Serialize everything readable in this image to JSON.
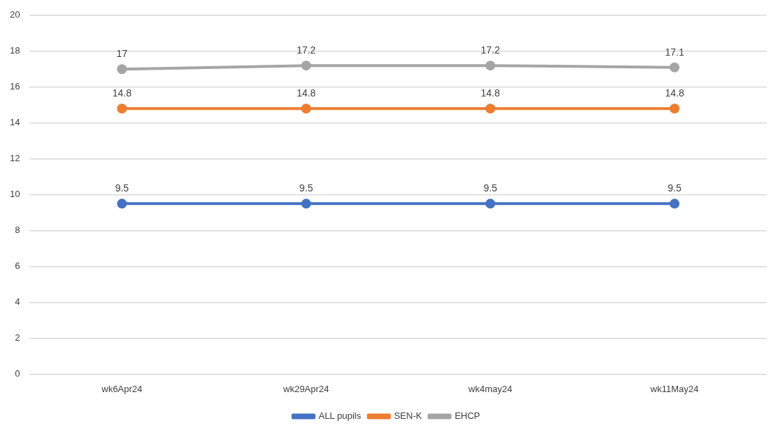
{
  "chart_data": {
    "type": "line",
    "categories": [
      "wk6Apr24",
      "wk29Apr24",
      "wk4may24",
      "wk11May24"
    ],
    "series": [
      {
        "name": "ALL pupils",
        "color": "#4472c4",
        "values": [
          9.5,
          9.5,
          9.5,
          9.5
        ]
      },
      {
        "name": "SEN-K",
        "color": "#ed7d31",
        "values": [
          14.8,
          14.8,
          14.8,
          14.8
        ]
      },
      {
        "name": "EHCP",
        "color": "#a5a5a5",
        "values": [
          17,
          17.2,
          17.2,
          17.1
        ]
      }
    ],
    "ylim": [
      0,
      20
    ],
    "yticks": [
      0,
      2,
      4,
      6,
      8,
      10,
      12,
      14,
      16,
      18,
      20
    ],
    "grid": "y",
    "legend": "bottom",
    "marker": "circle",
    "line_style": "solid",
    "data_labels": true
  }
}
